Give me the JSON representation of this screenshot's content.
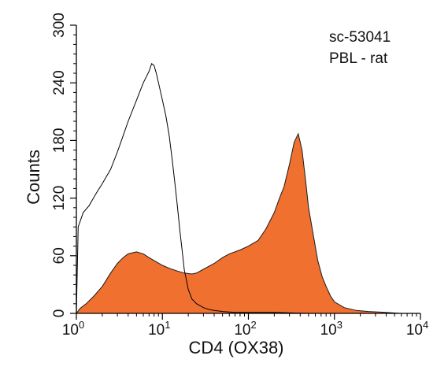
{
  "chart_data": {
    "type": "area",
    "xlabel": "CD4 (OX38)",
    "ylabel": "Counts",
    "xscale": "log",
    "xlim": [
      1,
      10000
    ],
    "ylim": [
      0,
      300
    ],
    "x_ticks": [
      {
        "base": "10",
        "exp": "0",
        "value": 1
      },
      {
        "base": "10",
        "exp": "1",
        "value": 10
      },
      {
        "base": "10",
        "exp": "2",
        "value": 100
      },
      {
        "base": "10",
        "exp": "3",
        "value": 1000
      },
      {
        "base": "10",
        "exp": "4",
        "value": 10000
      }
    ],
    "y_ticks": [
      "0",
      "60",
      "120",
      "180",
      "240",
      "300"
    ],
    "annotations": [
      "sc-53041",
      "PBL - rat"
    ],
    "colors": {
      "filled": "#f07030",
      "outline": "#000000"
    },
    "grid": false,
    "series": [
      {
        "style": "outline",
        "x": [
          1,
          1.05,
          1.2,
          1.4,
          1.7,
          2,
          2.5,
          3,
          3.5,
          4,
          5,
          6,
          7,
          7.5,
          8,
          8.5,
          9,
          10,
          11,
          12,
          13,
          14,
          15,
          16,
          17,
          18,
          19,
          20,
          22,
          25,
          30,
          35,
          40,
          50,
          70,
          100,
          200,
          500,
          1000,
          2000,
          5000,
          10000
        ],
        "values": [
          0,
          90,
          105,
          112,
          125,
          135,
          150,
          168,
          185,
          200,
          222,
          240,
          252,
          260,
          258,
          250,
          240,
          222,
          205,
          185,
          160,
          135,
          110,
          85,
          65,
          45,
          35,
          25,
          15,
          10,
          6,
          4,
          3,
          2,
          1,
          1,
          1,
          0,
          0,
          0,
          0,
          0
        ]
      },
      {
        "style": "filled",
        "x": [
          1,
          1.1,
          1.3,
          1.6,
          2,
          2.5,
          3,
          3.5,
          4,
          5,
          6,
          7,
          8,
          10,
          12,
          15,
          18,
          22,
          25,
          30,
          40,
          50,
          60,
          80,
          100,
          130,
          160,
          200,
          230,
          260,
          300,
          340,
          380,
          420,
          460,
          500,
          560,
          640,
          720,
          800,
          900,
          1000,
          1300,
          1800,
          2500,
          4000,
          6000,
          10000
        ],
        "values": [
          0,
          5,
          10,
          18,
          28,
          42,
          52,
          58,
          62,
          64,
          62,
          58,
          55,
          50,
          47,
          44,
          42,
          41,
          42,
          46,
          52,
          58,
          62,
          66,
          70,
          76,
          88,
          105,
          120,
          132,
          155,
          178,
          187,
          170,
          140,
          110,
          85,
          55,
          38,
          28,
          18,
          12,
          6,
          3,
          2,
          1,
          0,
          0
        ]
      }
    ]
  }
}
